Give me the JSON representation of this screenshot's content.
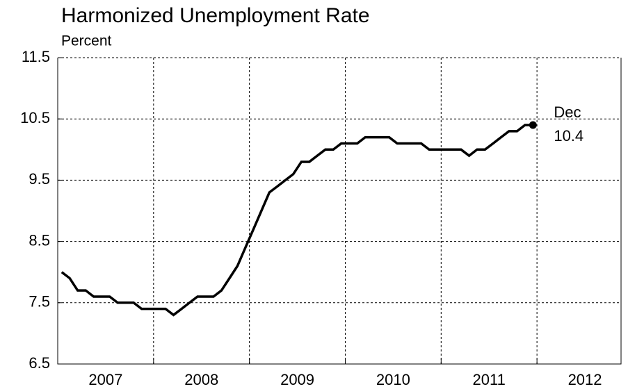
{
  "chart_data": {
    "type": "line",
    "title": "Harmonized Unemployment Rate",
    "subtitle": "Percent",
    "x": [
      2007.042,
      2007.125,
      2007.208,
      2007.292,
      2007.375,
      2007.458,
      2007.542,
      2007.625,
      2007.708,
      2007.792,
      2007.875,
      2007.958,
      2008.042,
      2008.125,
      2008.208,
      2008.292,
      2008.375,
      2008.458,
      2008.542,
      2008.625,
      2008.708,
      2008.792,
      2008.875,
      2008.958,
      2009.042,
      2009.125,
      2009.208,
      2009.292,
      2009.375,
      2009.458,
      2009.542,
      2009.625,
      2009.708,
      2009.792,
      2009.875,
      2009.958,
      2010.042,
      2010.125,
      2010.208,
      2010.292,
      2010.375,
      2010.458,
      2010.542,
      2010.625,
      2010.708,
      2010.792,
      2010.875,
      2010.958,
      2011.042,
      2011.125,
      2011.208,
      2011.292,
      2011.375,
      2011.458,
      2011.542,
      2011.625,
      2011.708,
      2011.792,
      2011.875,
      2011.958
    ],
    "series": [
      {
        "color": "#000000",
        "values": [
          8.0,
          7.9,
          7.7,
          7.7,
          7.6,
          7.6,
          7.6,
          7.5,
          7.5,
          7.5,
          7.4,
          7.4,
          7.4,
          7.4,
          7.3,
          7.4,
          7.5,
          7.6,
          7.6,
          7.6,
          7.7,
          7.9,
          8.1,
          8.4,
          8.7,
          9.0,
          9.3,
          9.4,
          9.5,
          9.6,
          9.8,
          9.8,
          9.9,
          10.0,
          10.0,
          10.1,
          10.1,
          10.1,
          10.2,
          10.2,
          10.2,
          10.2,
          10.1,
          10.1,
          10.1,
          10.1,
          10.0,
          10.0,
          10.0,
          10.0,
          10.0,
          9.9,
          10.0,
          10.0,
          10.1,
          10.2,
          10.3,
          10.3,
          10.4,
          10.4
        ]
      }
    ],
    "last_point_label": "Dec",
    "xlim": [
      2007,
      2012.877
    ],
    "xticks": [
      {
        "value": 2007.5,
        "label": "2007"
      },
      {
        "value": 2008.5,
        "label": "2008"
      },
      {
        "value": 2009.5,
        "label": "2009"
      },
      {
        "value": 2010.5,
        "label": "2010"
      },
      {
        "value": 2011.5,
        "label": "2011"
      },
      {
        "value": 2012.5,
        "label": "2012"
      }
    ],
    "xgrid": [
      2008,
      2009,
      2010,
      2011,
      2012
    ],
    "ylim": [
      6.5,
      11.5
    ],
    "yticks": [
      6.5,
      7.5,
      8.5,
      9.5,
      10.5,
      11.5
    ],
    "grid": true
  }
}
